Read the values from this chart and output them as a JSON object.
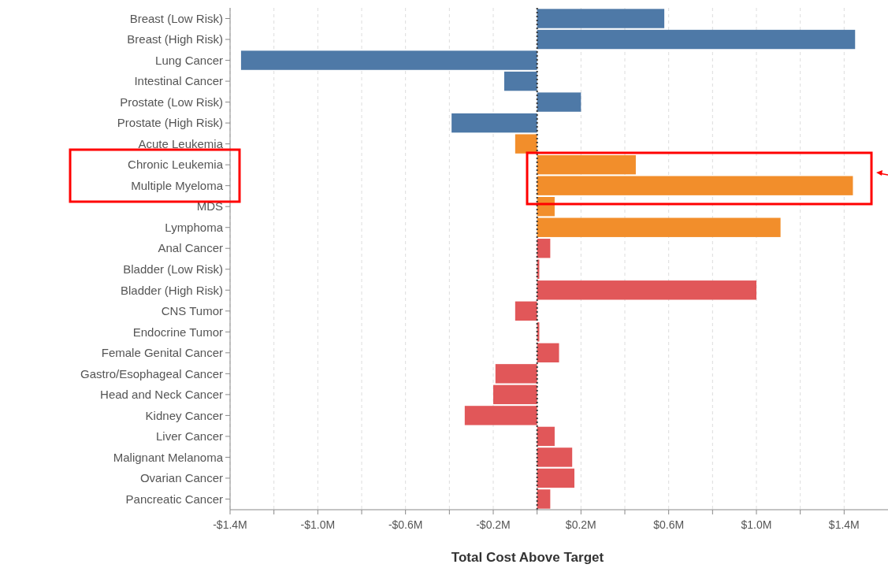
{
  "chart_data": {
    "type": "bar",
    "orientation": "horizontal",
    "xlabel": "Total Cost Above Target",
    "categories": [
      "Breast (Low Risk)",
      "Breast (High Risk)",
      "Lung Cancer",
      "Intestinal Cancer",
      "Prostate (Low Risk)",
      "Prostate (High Risk)",
      "Acute Leukemia",
      "Chronic Leukemia",
      "Multiple Myeloma",
      "MDS",
      "Lymphoma",
      "Anal Cancer",
      "Bladder (Low Risk)",
      "Bladder (High Risk)",
      "CNS Tumor",
      "Endocrine Tumor",
      "Female Genital Cancer",
      "Gastro/Esophageal Cancer",
      "Head and Neck Cancer",
      "Kidney Cancer",
      "Liver Cancer",
      "Malignant Melanoma",
      "Ovarian Cancer",
      "Pancreatic Cancer"
    ],
    "values": [
      0.58,
      1.45,
      -1.35,
      -0.15,
      0.2,
      -0.39,
      -0.1,
      0.45,
      1.44,
      0.08,
      1.11,
      0.06,
      0.01,
      1.0,
      -0.1,
      0.01,
      0.1,
      -0.19,
      -0.2,
      -0.33,
      0.08,
      0.16,
      0.17,
      0.06
    ],
    "colors": [
      "#4e79a7",
      "#4e79a7",
      "#4e79a7",
      "#4e79a7",
      "#4e79a7",
      "#4e79a7",
      "#f28e2b",
      "#f28e2b",
      "#f28e2b",
      "#f28e2b",
      "#f28e2b",
      "#e15759",
      "#e15759",
      "#e15759",
      "#e15759",
      "#e15759",
      "#e15759",
      "#e15759",
      "#e15759",
      "#e15759",
      "#e15759",
      "#e15759",
      "#e15759",
      "#e15759"
    ],
    "xlim": [
      -1.4,
      1.6
    ],
    "xticks": [
      {
        "value": -1.4,
        "label": "-$1.4M"
      },
      {
        "value": -1.2,
        "label": null
      },
      {
        "value": -1.0,
        "label": "-$1.0M"
      },
      {
        "value": -0.8,
        "label": null
      },
      {
        "value": -0.6,
        "label": "-$0.6M"
      },
      {
        "value": -0.4,
        "label": null
      },
      {
        "value": -0.2,
        "label": "-$0.2M"
      },
      {
        "value": 0,
        "label": null
      },
      {
        "value": 0.2,
        "label": "$0.2M"
      },
      {
        "value": 0.4,
        "label": null
      },
      {
        "value": 0.6,
        "label": "$0.6M"
      },
      {
        "value": 0.8,
        "label": null
      },
      {
        "value": 1.0,
        "label": "$1.0M"
      },
      {
        "value": 1.2,
        "label": null
      },
      {
        "value": 1.4,
        "label": "$1.4M"
      }
    ],
    "grid": "x",
    "ref_lines": [
      {
        "axis": "x",
        "value": 0,
        "color": "#333333",
        "line_style": "dotted"
      }
    ]
  }
}
